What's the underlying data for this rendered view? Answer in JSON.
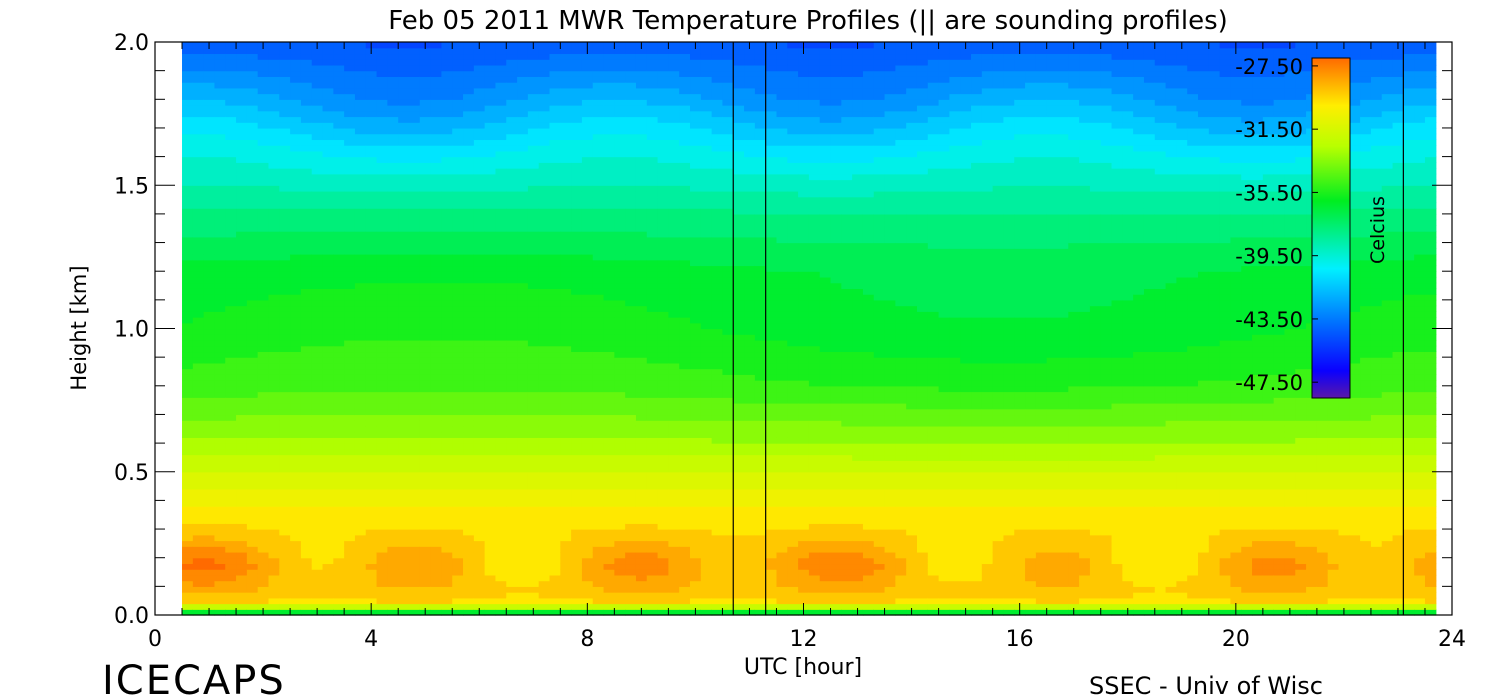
{
  "chart_data": {
    "type": "heatmap",
    "title": "Feb 05 2011 MWR Temperature Profiles (|| are sounding profiles)",
    "xlabel": "UTC [hour]",
    "ylabel": "Height [km]",
    "xlim": [
      0,
      24
    ],
    "ylim": [
      0,
      2
    ],
    "x_ticks": [
      "0",
      "4",
      "8",
      "12",
      "16",
      "20",
      "24"
    ],
    "y_ticks": [
      "0.0",
      "0.5",
      "1.0",
      "1.5",
      "2.0"
    ],
    "data_extent_hours": [
      0.5,
      23.7
    ],
    "colorbar": {
      "label": "Celcius",
      "range": [
        -48.5,
        -27.0
      ],
      "ticks": [
        "-27.50",
        "-31.50",
        "-35.50",
        "-39.50",
        "-43.50",
        "-47.50"
      ],
      "placement": "top-right, inside plot"
    },
    "sounding_times_hours": [
      10.7,
      11.3,
      23.1
    ],
    "vertical_profile": {
      "heights_km": [
        0.0,
        0.02,
        0.05,
        0.1,
        0.18,
        0.3,
        0.45,
        0.6,
        0.8,
        1.0,
        1.2,
        1.4,
        1.6,
        1.8,
        2.0
      ],
      "temperature_c": [
        -39.5,
        -33.0,
        -29.5,
        -28.8,
        -28.5,
        -29.5,
        -31.0,
        -33.0,
        -35.0,
        -36.0,
        -36.5,
        -38.0,
        -40.0,
        -42.5,
        -44.5
      ]
    },
    "features": [
      {
        "type": "warm_layer",
        "height_km": 0.18,
        "temperature_c": -28.2,
        "description_hours": [
          0.5,
          23.7
        ]
      },
      {
        "type": "cold_surface_layer",
        "height_km": 0.0,
        "temperature_c": -40.0
      }
    ]
  },
  "footer": {
    "left": "ICECAPS",
    "right": "SSEC - Univ of Wisc"
  }
}
